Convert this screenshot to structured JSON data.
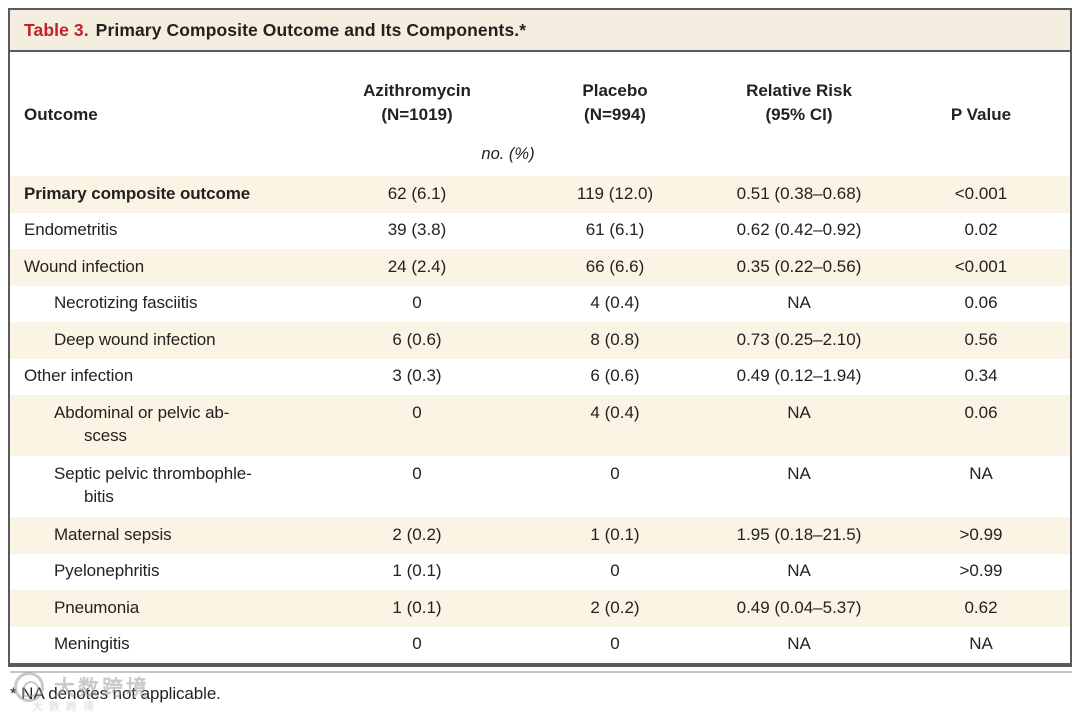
{
  "colors": {
    "accent_red": "#c12127",
    "title_band_bg": "#f4eee0",
    "stripe_bg": "#faf4e4",
    "border": "#595a5e"
  },
  "title": {
    "label": "Table 3.",
    "text": "Primary Composite Outcome and Its Components.*"
  },
  "header": {
    "outcome": "Outcome",
    "azithromycin": "Azithromycin\n(N=1019)",
    "placebo": "Placebo\n(N=994)",
    "relative_risk": "Relative Risk\n(95% CI)",
    "p_value": "P Value",
    "units": "no. (%)"
  },
  "rows": [
    {
      "label": "Primary composite outcome",
      "indent": 0,
      "bold": true,
      "azithromycin": "62 (6.1)",
      "placebo": "119 (12.0)",
      "relative_risk": "0.51 (0.38–0.68)",
      "p_value": "<0.001"
    },
    {
      "label": "Endometritis",
      "indent": 0,
      "bold": false,
      "azithromycin": "39 (3.8)",
      "placebo": "61 (6.1)",
      "relative_risk": "0.62 (0.42–0.92)",
      "p_value": "0.02"
    },
    {
      "label": "Wound infection",
      "indent": 0,
      "bold": false,
      "azithromycin": "24 (2.4)",
      "placebo": "66 (6.6)",
      "relative_risk": "0.35 (0.22–0.56)",
      "p_value": "<0.001"
    },
    {
      "label": "Necrotizing fasciitis",
      "indent": 1,
      "bold": false,
      "azithromycin": "0",
      "placebo": "4 (0.4)",
      "relative_risk": "NA",
      "p_value": "0.06"
    },
    {
      "label": "Deep wound infection",
      "indent": 1,
      "bold": false,
      "azithromycin": "6 (0.6)",
      "placebo": "8 (0.8)",
      "relative_risk": "0.73 (0.25–2.10)",
      "p_value": "0.56"
    },
    {
      "label": "Other infection",
      "indent": 0,
      "bold": false,
      "azithromycin": "3 (0.3)",
      "placebo": "6 (0.6)",
      "relative_risk": "0.49 (0.12–1.94)",
      "p_value": "0.34"
    },
    {
      "label": "Abdominal or pelvic ab-\nscess",
      "indent": 1,
      "bold": false,
      "azithromycin": "0",
      "placebo": "4 (0.4)",
      "relative_risk": "NA",
      "p_value": "0.06"
    },
    {
      "label": "Septic pelvic thrombophle-\nbitis",
      "indent": 1,
      "bold": false,
      "azithromycin": "0",
      "placebo": "0",
      "relative_risk": "NA",
      "p_value": "NA"
    },
    {
      "label": "Maternal sepsis",
      "indent": 1,
      "bold": false,
      "azithromycin": "2 (0.2)",
      "placebo": "1 (0.1)",
      "relative_risk": "1.95 (0.18–21.5)",
      "p_value": ">0.99"
    },
    {
      "label": "Pyelonephritis",
      "indent": 1,
      "bold": false,
      "azithromycin": "1 (0.1)",
      "placebo": "0",
      "relative_risk": "NA",
      "p_value": ">0.99"
    },
    {
      "label": "Pneumonia",
      "indent": 1,
      "bold": false,
      "azithromycin": "1 (0.1)",
      "placebo": "2 (0.2)",
      "relative_risk": "0.49 (0.04–5.37)",
      "p_value": "0.62"
    },
    {
      "label": "Meningitis",
      "indent": 1,
      "bold": false,
      "azithromycin": "0",
      "placebo": "0",
      "relative_risk": "NA",
      "p_value": "NA"
    }
  ],
  "footnote": "* NA denotes not applicable.",
  "watermark": {
    "text": "大数跨境"
  }
}
